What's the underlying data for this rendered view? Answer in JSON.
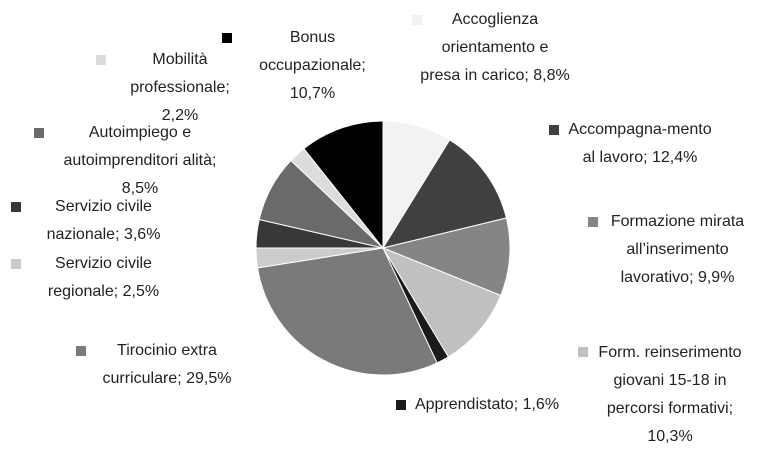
{
  "chart_data": {
    "type": "pie",
    "categories": [
      "Accoglienza orientamento e presa in carico",
      "Accompagna-mento al lavoro",
      "Formazione mirata all’inserimento lavorativo",
      "Form. reinserimento giovani 15-18 in percorsi formativi",
      "Apprendistato",
      "Tirocinio extra curriculare",
      "Servizio civile regionale",
      "Servizio civile nazionale",
      "Autoimpiego e autoimprenditori alità",
      "Mobilità professionale",
      "Bonus occupazionale"
    ],
    "values": [
      8.8,
      12.4,
      9.9,
      10.3,
      1.6,
      29.5,
      2.5,
      3.6,
      8.5,
      2.2,
      10.7
    ],
    "value_labels": [
      "8,8%",
      "12,4%",
      "9,9%",
      "10,3%",
      "1,6%",
      "29,5%",
      "2,5%",
      "3,6%",
      "8,5%",
      "2,2%",
      "10,7%"
    ],
    "label_separator": "; ",
    "colors": [
      "#f2f2f2",
      "#404040",
      "#858585",
      "#c0c0c0",
      "#1a1a1a",
      "#7a7a7a",
      "#cccccc",
      "#383838",
      "#6a6a6a",
      "#dcdcdc",
      "#000000"
    ]
  }
}
